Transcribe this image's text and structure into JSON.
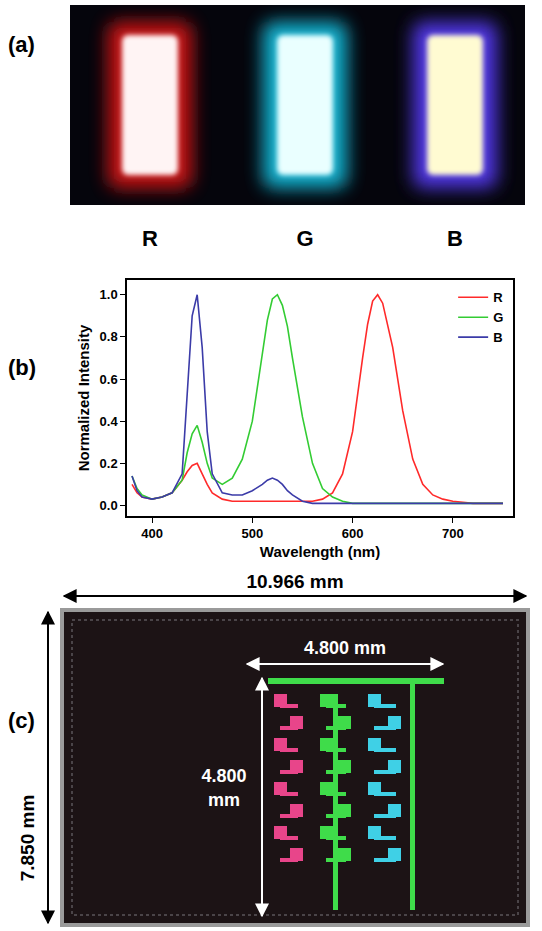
{
  "panel_a": {
    "label": "(a)",
    "devices": [
      "R",
      "G",
      "B"
    ]
  },
  "panel_b": {
    "label": "(b)"
  },
  "chart_data": {
    "type": "line",
    "x_label": "Wavelength (nm)",
    "y_label": "Normalized Intensity",
    "x": [
      380,
      385,
      390,
      400,
      410,
      420,
      430,
      435,
      440,
      445,
      450,
      455,
      460,
      470,
      480,
      490,
      500,
      510,
      515,
      520,
      525,
      530,
      535,
      540,
      550,
      560,
      570,
      580,
      590,
      600,
      610,
      615,
      620,
      625,
      630,
      640,
      650,
      660,
      670,
      680,
      690,
      700,
      720,
      750
    ],
    "series": [
      {
        "name": "R",
        "color": "#ff2a2a",
        "values": [
          0.1,
          0.06,
          0.04,
          0.03,
          0.04,
          0.06,
          0.12,
          0.16,
          0.19,
          0.2,
          0.15,
          0.1,
          0.06,
          0.03,
          0.02,
          0.02,
          0.02,
          0.02,
          0.02,
          0.02,
          0.02,
          0.02,
          0.02,
          0.02,
          0.02,
          0.02,
          0.03,
          0.06,
          0.15,
          0.35,
          0.7,
          0.86,
          0.97,
          1.0,
          0.96,
          0.75,
          0.45,
          0.22,
          0.1,
          0.05,
          0.03,
          0.02,
          0.01,
          0.01
        ]
      },
      {
        "name": "G",
        "color": "#33cc33",
        "values": [
          0.14,
          0.08,
          0.05,
          0.03,
          0.04,
          0.06,
          0.12,
          0.25,
          0.34,
          0.38,
          0.3,
          0.2,
          0.13,
          0.1,
          0.13,
          0.22,
          0.4,
          0.72,
          0.88,
          0.98,
          1.0,
          0.95,
          0.85,
          0.7,
          0.42,
          0.2,
          0.08,
          0.04,
          0.02,
          0.01,
          0.01,
          0.01,
          0.01,
          0.01,
          0.01,
          0.01,
          0.01,
          0.01,
          0.01,
          0.01,
          0.01,
          0.01,
          0.01,
          0.01
        ]
      },
      {
        "name": "B",
        "color": "#3b3ba8",
        "values": [
          0.14,
          0.07,
          0.04,
          0.03,
          0.04,
          0.06,
          0.15,
          0.5,
          0.9,
          1.0,
          0.75,
          0.35,
          0.15,
          0.06,
          0.05,
          0.05,
          0.07,
          0.1,
          0.12,
          0.13,
          0.12,
          0.1,
          0.07,
          0.05,
          0.02,
          0.01,
          0.01,
          0.01,
          0.01,
          0.01,
          0.01,
          0.01,
          0.01,
          0.01,
          0.01,
          0.01,
          0.01,
          0.01,
          0.01,
          0.01,
          0.01,
          0.01,
          0.01,
          0.01
        ]
      }
    ],
    "xlim": [
      375,
      760
    ],
    "xticks": [
      400,
      500,
      600,
      700
    ],
    "ylim": [
      -0.05,
      1.07
    ],
    "yticks": [
      {
        "value": 0,
        "label": "0.0"
      },
      {
        "value": 0.2,
        "label": "0.2"
      },
      {
        "value": 0.4,
        "label": "0.4"
      },
      {
        "value": 0.6,
        "label": "0.6"
      },
      {
        "value": 0.8,
        "label": "0.8"
      },
      {
        "value": 1,
        "label": "1.0"
      }
    ],
    "grid": false,
    "legend": "top-right"
  },
  "panel_c": {
    "label": "(c)",
    "width_label": "10.966 mm",
    "height_label": "7.850 mm",
    "active_width_label": "4.800 mm",
    "active_height_label": "4.800 mm"
  }
}
